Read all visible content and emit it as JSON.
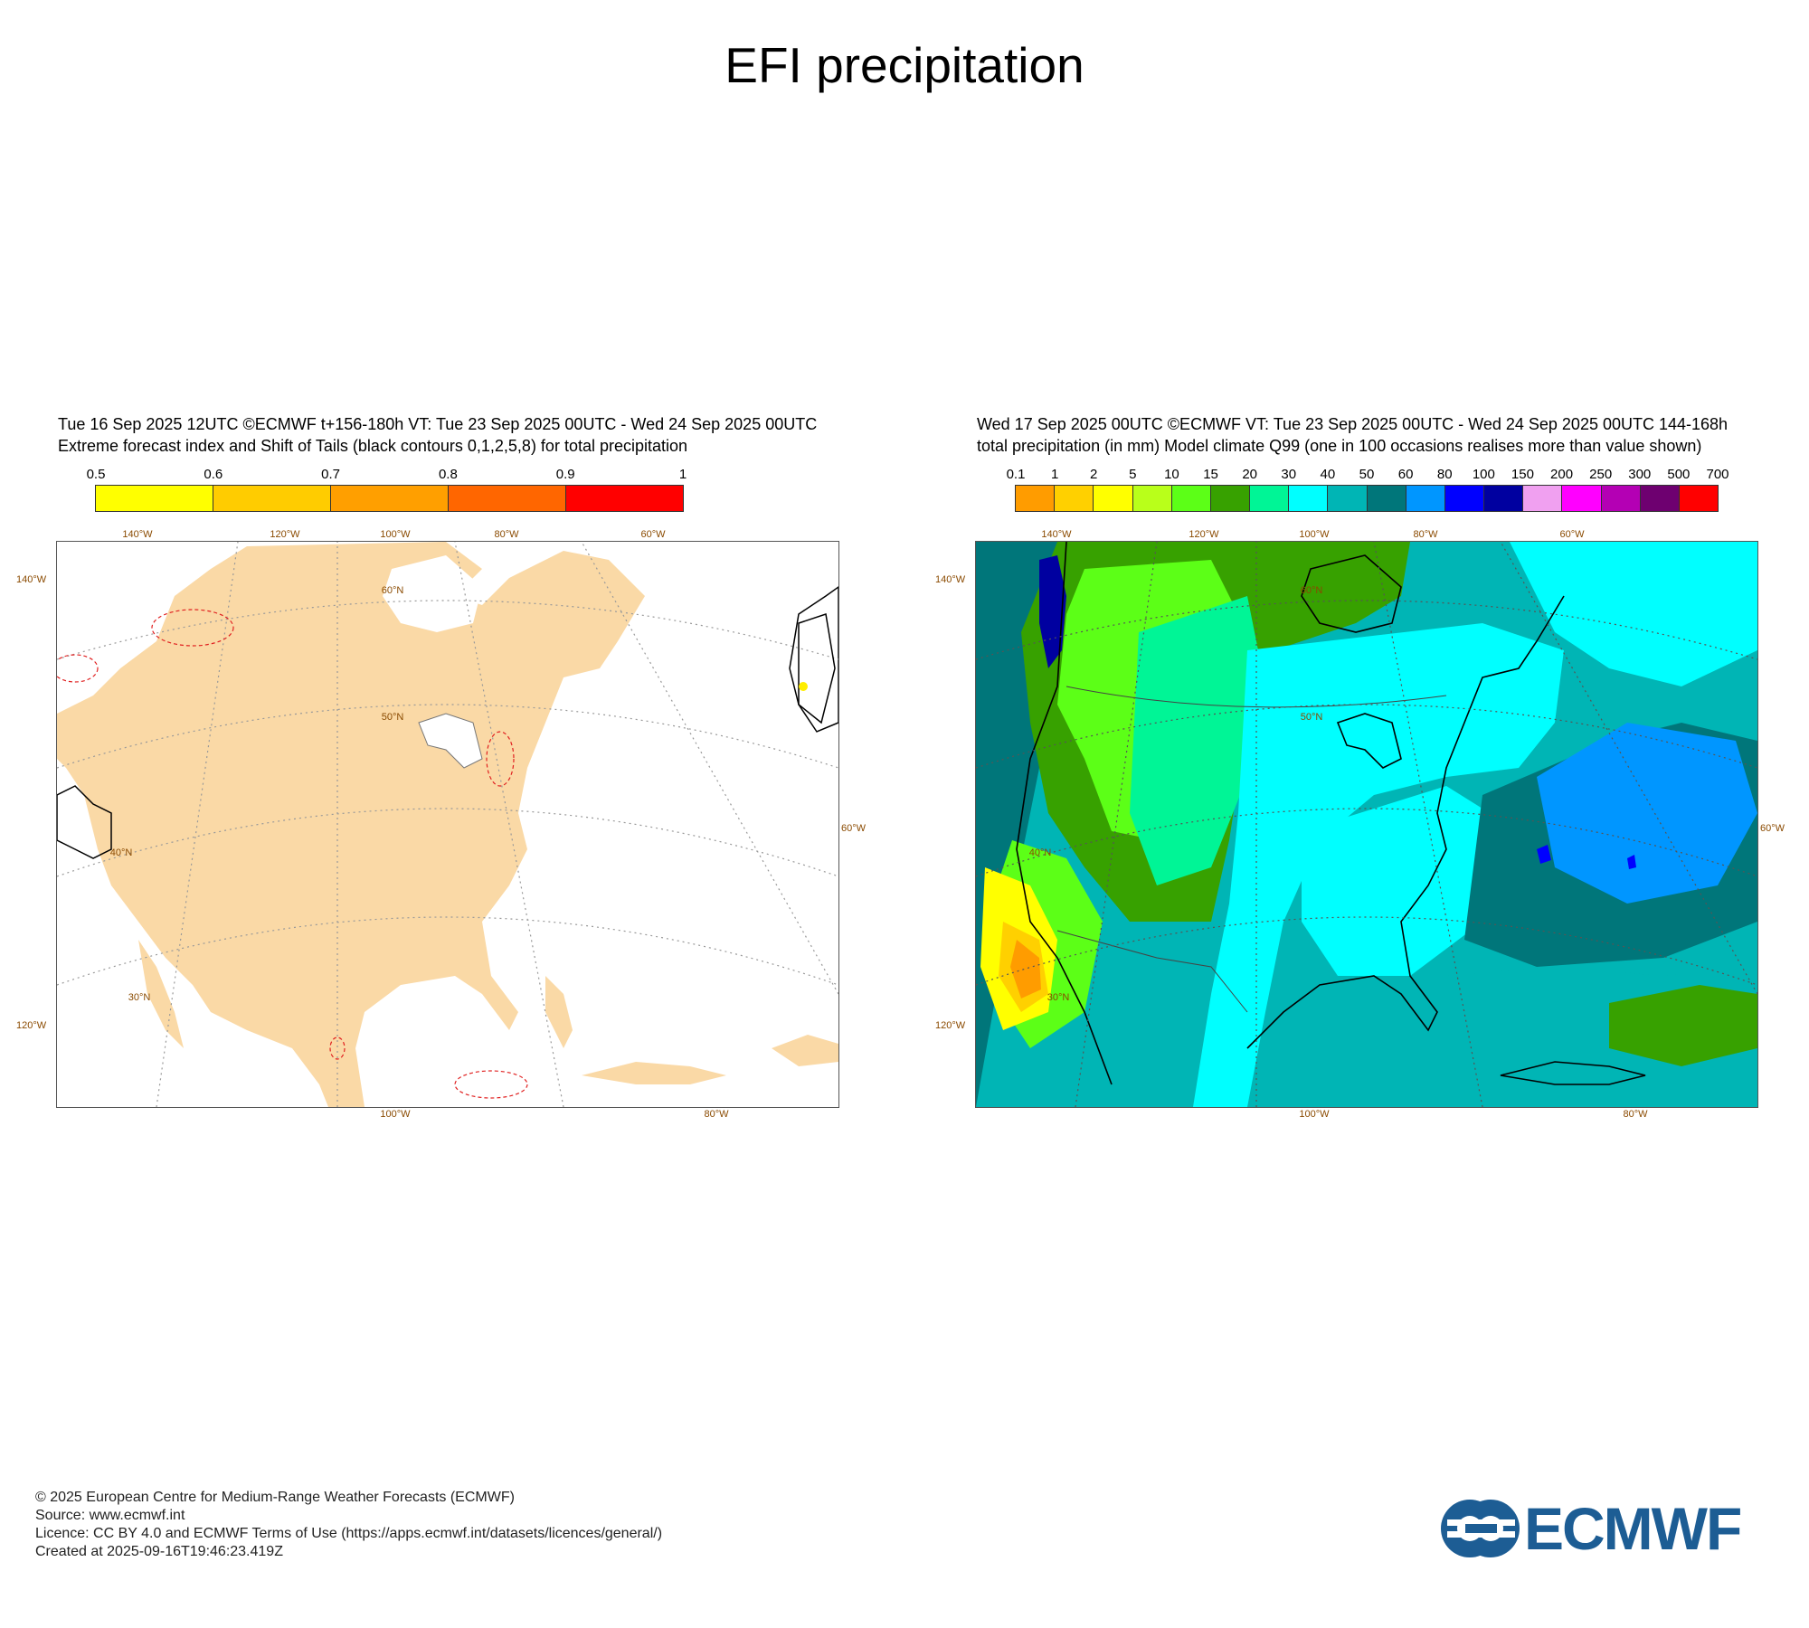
{
  "page": {
    "title": "EFI precipitation"
  },
  "left_panel": {
    "header_line1": "Tue 16 Sep 2025 12UTC ©ECMWF t+156-180h  VT: Tue 23 Sep 2025 00UTC - Wed 24 Sep 2025 00UTC",
    "header_line2": "Extreme forecast index and Shift of Tails (black contours 0,1,2,5,8) for total precipitation",
    "colorbar": {
      "labels": [
        "0.5",
        "0.6",
        "0.7",
        "0.8",
        "0.9",
        "1"
      ],
      "colors": [
        "#ffff00",
        "#ffcc00",
        "#ff9f00",
        "#ff6600",
        "#ff0000"
      ]
    },
    "ticks": {
      "top": [
        "140°W",
        "120°W",
        "100°W",
        "80°W",
        "60°W"
      ],
      "bottom": [
        "100°W",
        "80°W"
      ],
      "left": [
        "140°W",
        "120°W"
      ],
      "right": [
        "60°W"
      ],
      "lat": [
        "60°N",
        "50°N",
        "40°N",
        "30°N"
      ]
    },
    "land_color": "#fad9a6",
    "icons": {
      "map": "north-america-map"
    }
  },
  "right_panel": {
    "header_line1": "Wed 17 Sep 2025 00UTC ©ECMWF VT: Tue 23 Sep 2025 00UTC - Wed 24 Sep 2025 00UTC   144-168h",
    "header_line2": "total precipitation (in mm)  Model climate Q99 (one in 100 occasions realises more than value shown)",
    "colorbar": {
      "labels": [
        "0.1",
        "1",
        "2",
        "5",
        "10",
        "15",
        "20",
        "30",
        "40",
        "50",
        "60",
        "80",
        "100",
        "150",
        "200",
        "250",
        "300",
        "500",
        "700"
      ],
      "colors": [
        "#ff9c00",
        "#ffd000",
        "#ffff00",
        "#b9ff1a",
        "#5cff17",
        "#37a100",
        "#00f596",
        "#00ffff",
        "#00b5b5",
        "#00767a",
        "#0096ff",
        "#0000ff",
        "#0000a0",
        "#f0a0f0",
        "#ff00ff",
        "#b400b4",
        "#6e0070",
        "#ff0000"
      ]
    },
    "ticks": {
      "top": [
        "140°W",
        "120°W",
        "100°W",
        "80°W",
        "60°W"
      ],
      "bottom": [
        "100°W",
        "80°W"
      ],
      "left": [
        "140°W",
        "120°W"
      ],
      "right": [
        "60°W"
      ],
      "lat": [
        "60°N",
        "50°N",
        "40°N",
        "30°N"
      ]
    },
    "icons": {
      "map": "north-america-precip-map"
    }
  },
  "footer": {
    "line1": "© 2025 European Centre for Medium-Range Weather Forecasts (ECMWF)",
    "line2": "Source: www.ecmwf.int",
    "line3": "Licence: CC BY 4.0 and ECMWF Terms of Use (https://apps.ecmwf.int/datasets/licences/general/)",
    "line4": "Created at 2025-09-16T19:46:23.419Z"
  },
  "logo": {
    "text": "ECMWF",
    "color": "#1d5d94"
  }
}
